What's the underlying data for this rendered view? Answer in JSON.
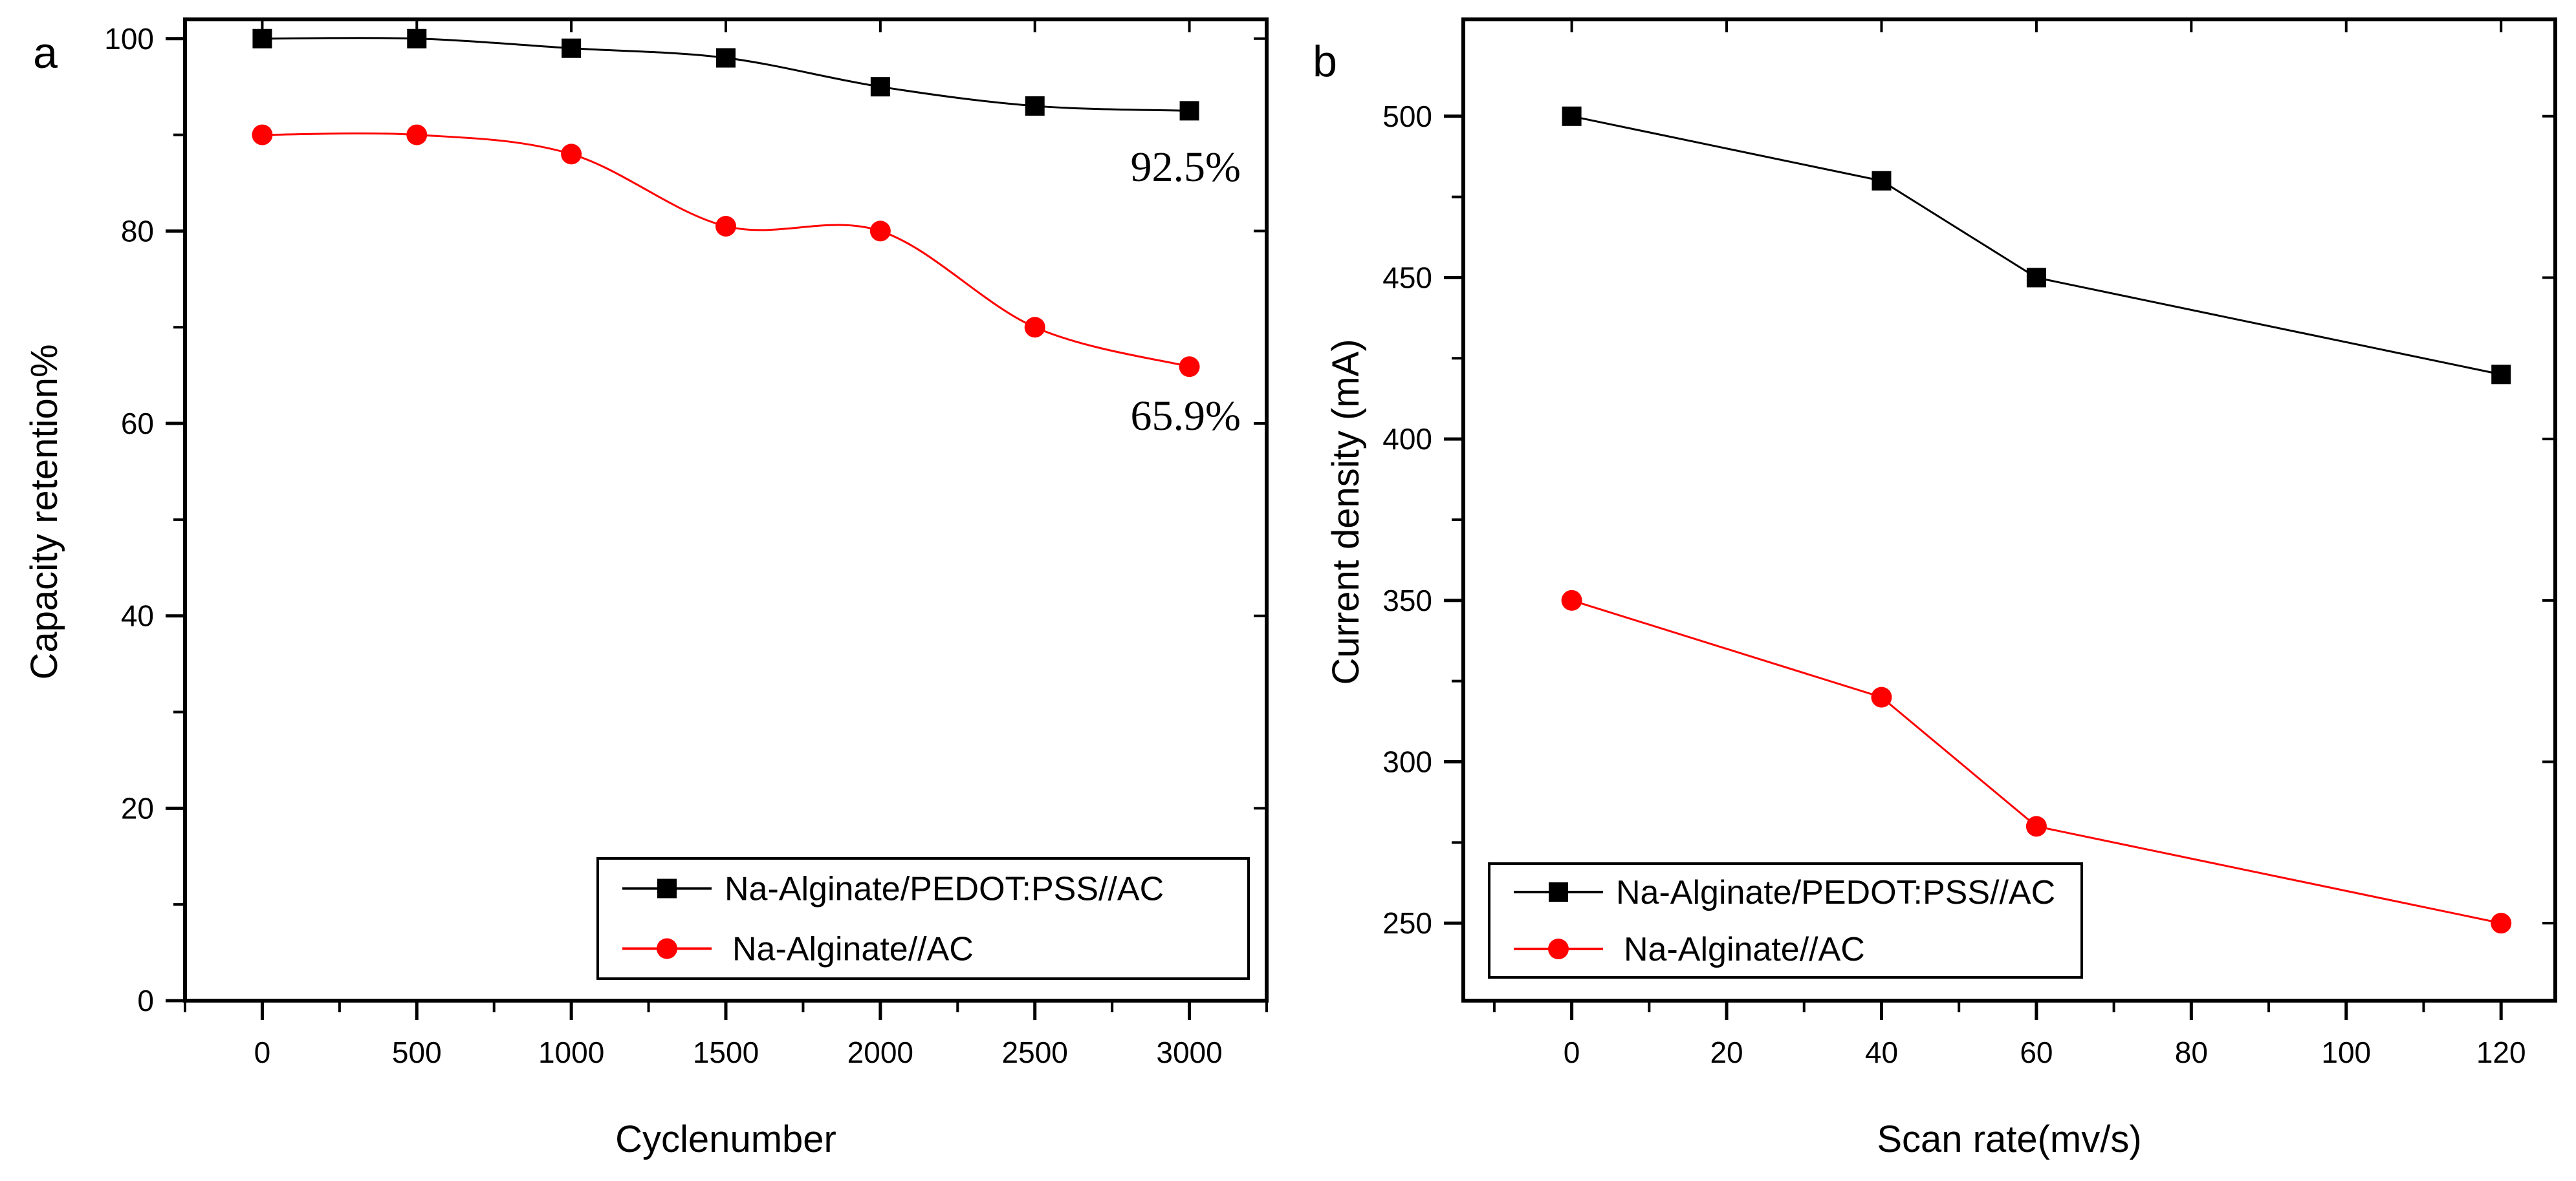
{
  "chart_data": [
    {
      "panel_label": "a",
      "type": "line",
      "title": "",
      "xlabel": "Cyclenumber",
      "ylabel": "Capacity retention%",
      "xlim": [
        -250,
        3250
      ],
      "ylim": [
        0,
        102
      ],
      "xticks": [
        0,
        500,
        1000,
        1500,
        2000,
        2500,
        3000
      ],
      "xtick_labels": [
        "0",
        "500",
        "1000",
        "1500",
        "2000",
        "2500",
        "3000"
      ],
      "yticks": [
        0,
        20,
        40,
        60,
        80,
        100
      ],
      "ytick_labels": [
        "0",
        "20",
        "40",
        "60",
        "80",
        "100"
      ],
      "x": [
        0,
        500,
        1000,
        1500,
        2000,
        2500,
        3000
      ],
      "series": [
        {
          "name": "Na-Alginate/PEDOT:PSS//AC",
          "color": "#000000",
          "marker": "square",
          "values": [
            100,
            100,
            99,
            98,
            95,
            93,
            92.5
          ]
        },
        {
          "name": "Na-Alginate//AC",
          "color": "#ff0000",
          "marker": "circle",
          "values": [
            90,
            90,
            88,
            80.5,
            80,
            70,
            65.9
          ]
        }
      ],
      "annotations": [
        {
          "text": "92.5%",
          "x": 3000,
          "y": 92.5
        },
        {
          "text": "65.9%",
          "x": 3000,
          "y": 65.9
        }
      ],
      "legend_position": "bottom-right",
      "grid": false
    },
    {
      "panel_label": "b",
      "type": "line",
      "title": "",
      "xlabel": "Scan rate(mv/s)",
      "ylabel": "Current density (mA)",
      "xlim": [
        -14,
        127
      ],
      "ylim": [
        226,
        530
      ],
      "xticks": [
        0,
        20,
        40,
        60,
        80,
        100,
        120
      ],
      "xtick_labels": [
        "0",
        "20",
        "40",
        "60",
        "80",
        "100",
        "120"
      ],
      "yticks": [
        250,
        300,
        350,
        400,
        450,
        500
      ],
      "ytick_labels": [
        "250",
        "300",
        "350",
        "400",
        "450",
        "500"
      ],
      "x": [
        0,
        40,
        60,
        120
      ],
      "series": [
        {
          "name": "Na-Alginate/PEDOT:PSS//AC",
          "color": "#000000",
          "marker": "square",
          "values": [
            500,
            480,
            450,
            420
          ]
        },
        {
          "name": "Na-Alginate//AC",
          "color": "#ff0000",
          "marker": "circle",
          "values": [
            350,
            320,
            280,
            250
          ]
        }
      ],
      "annotations": [],
      "legend_position": "bottom-left",
      "grid": false
    }
  ]
}
